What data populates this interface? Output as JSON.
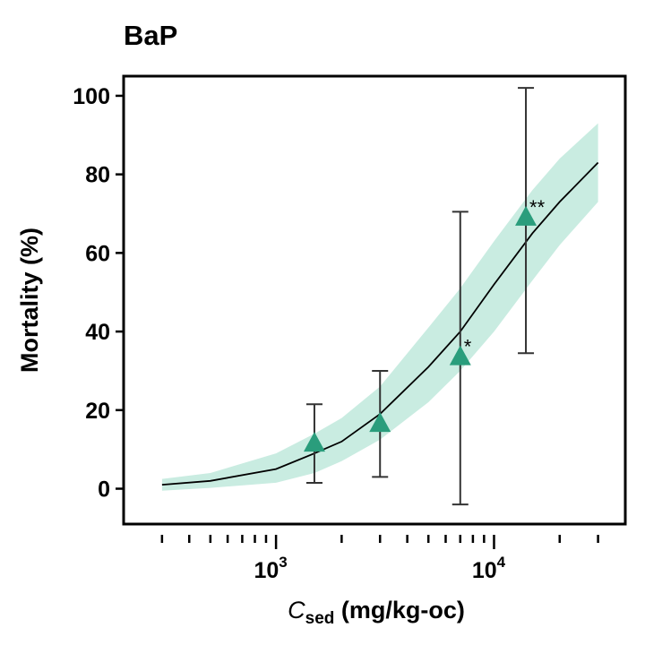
{
  "chart_data": {
    "type": "scatter",
    "title": "BaP",
    "xlabel": {
      "italic": "C",
      "sub": "sed",
      "rest": " (mg/kg-oc)"
    },
    "ylabel": "Mortality (%)",
    "xscale": "log",
    "xlim": [
      200,
      40000
    ],
    "ylim": [
      -9,
      105
    ],
    "yticks": [
      0,
      20,
      40,
      60,
      80,
      100
    ],
    "xticks": [
      {
        "value": 1000,
        "base": "10",
        "exp": "3"
      },
      {
        "value": 10000,
        "base": "10",
        "exp": "4"
      }
    ],
    "grid": false,
    "points": [
      {
        "x": 1500,
        "y": 11.5,
        "err_low": 1.5,
        "err_high": 21.5,
        "sig": ""
      },
      {
        "x": 3000,
        "y": 16.5,
        "err_low": 3,
        "err_high": 30,
        "sig": ""
      },
      {
        "x": 7000,
        "y": 33.5,
        "err_low": -4,
        "err_high": 70.5,
        "sig": "*"
      },
      {
        "x": 14000,
        "y": 69,
        "err_low": 34.5,
        "err_high": 102,
        "sig": "**"
      }
    ],
    "fit": {
      "x": [
        300,
        500,
        1000,
        1500,
        2000,
        3000,
        5000,
        7000,
        10000,
        15000,
        20000,
        30000
      ],
      "y": [
        1,
        2,
        5,
        9,
        12,
        19,
        31,
        40,
        52,
        65,
        73,
        83
      ],
      "lower": [
        -0.5,
        0.2,
        1.5,
        4,
        7,
        12.5,
        22,
        30,
        40,
        53,
        62,
        73
      ],
      "upper": [
        2.5,
        4,
        9,
        14,
        18,
        26,
        41,
        51,
        63,
        76,
        84,
        93
      ]
    },
    "colors": {
      "marker": "#2a9d7c",
      "band": "#c9ece1",
      "line": "#000000",
      "errorbar": "#333333"
    }
  }
}
